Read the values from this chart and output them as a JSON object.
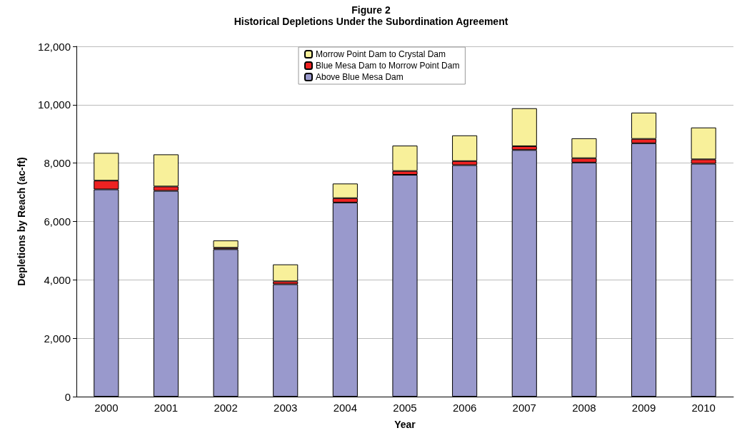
{
  "chart_data": {
    "type": "bar",
    "title": "Figure 2",
    "subtitle": "Historical Depletions Under the Subordination Agreement",
    "xlabel": "Year",
    "ylabel": "Depletions by Reach (ac-ft)",
    "categories": [
      "2000",
      "2001",
      "2002",
      "2003",
      "2004",
      "2005",
      "2006",
      "2007",
      "2008",
      "2009",
      "2010"
    ],
    "stacked": true,
    "grid": "y",
    "legend": "top",
    "ylim": [
      0,
      12000
    ],
    "yticks": [
      {
        "value": 0,
        "label": "0"
      },
      {
        "value": 2000,
        "label": "2,000"
      },
      {
        "value": 4000,
        "label": "4,000"
      },
      {
        "value": 6000,
        "label": "6,000"
      },
      {
        "value": 8000,
        "label": "8,000"
      },
      {
        "value": 10000,
        "label": "10,000"
      },
      {
        "value": 12000,
        "label": "12,000"
      }
    ],
    "series": [
      {
        "name": "Above Blue Mesa Dam",
        "color": "#9999cc",
        "values": [
          7100,
          7050,
          5050,
          3850,
          6650,
          7600,
          7930,
          8450,
          8020,
          8680,
          7980
        ]
      },
      {
        "name": "Blue Mesa Dam to Morrow Point Dam",
        "color": "#ee2222",
        "values": [
          300,
          150,
          50,
          100,
          150,
          130,
          140,
          130,
          150,
          150,
          150
        ]
      },
      {
        "name": "Morrow Point Dam to Crystal Dam",
        "color": "#f8f09a",
        "values": [
          950,
          1100,
          250,
          580,
          500,
          870,
          880,
          1300,
          680,
          900,
          1090
        ]
      }
    ]
  }
}
